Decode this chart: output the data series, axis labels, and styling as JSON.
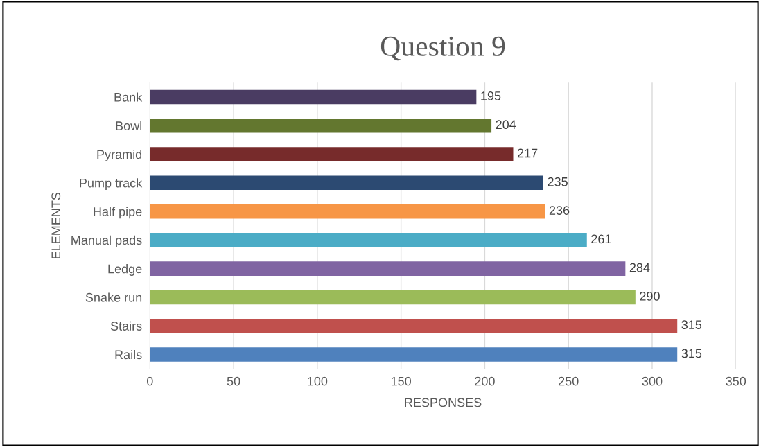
{
  "chart_data": {
    "type": "bar",
    "orientation": "horizontal",
    "title": "Question 9",
    "xlabel": "RESPONSES",
    "ylabel": "ELEMENTS",
    "categories": [
      "Bank",
      "Bowl",
      "Pyramid",
      "Pump track",
      "Half pipe",
      "Manual pads",
      "Ledge",
      "Snake run",
      "Stairs",
      "Rails"
    ],
    "values": [
      195,
      204,
      217,
      235,
      236,
      261,
      284,
      290,
      315,
      315
    ],
    "colors": [
      "#4a3c62",
      "#63772f",
      "#772b2b",
      "#2c4a72",
      "#f79646",
      "#4bacc6",
      "#8064a2",
      "#9bbb59",
      "#c0504d",
      "#4f81bd"
    ],
    "xlim": [
      0,
      350
    ],
    "xticks": [
      0,
      50,
      100,
      150,
      200,
      250,
      300,
      350
    ],
    "grid": "x",
    "data_labels": true,
    "legend": false
  }
}
